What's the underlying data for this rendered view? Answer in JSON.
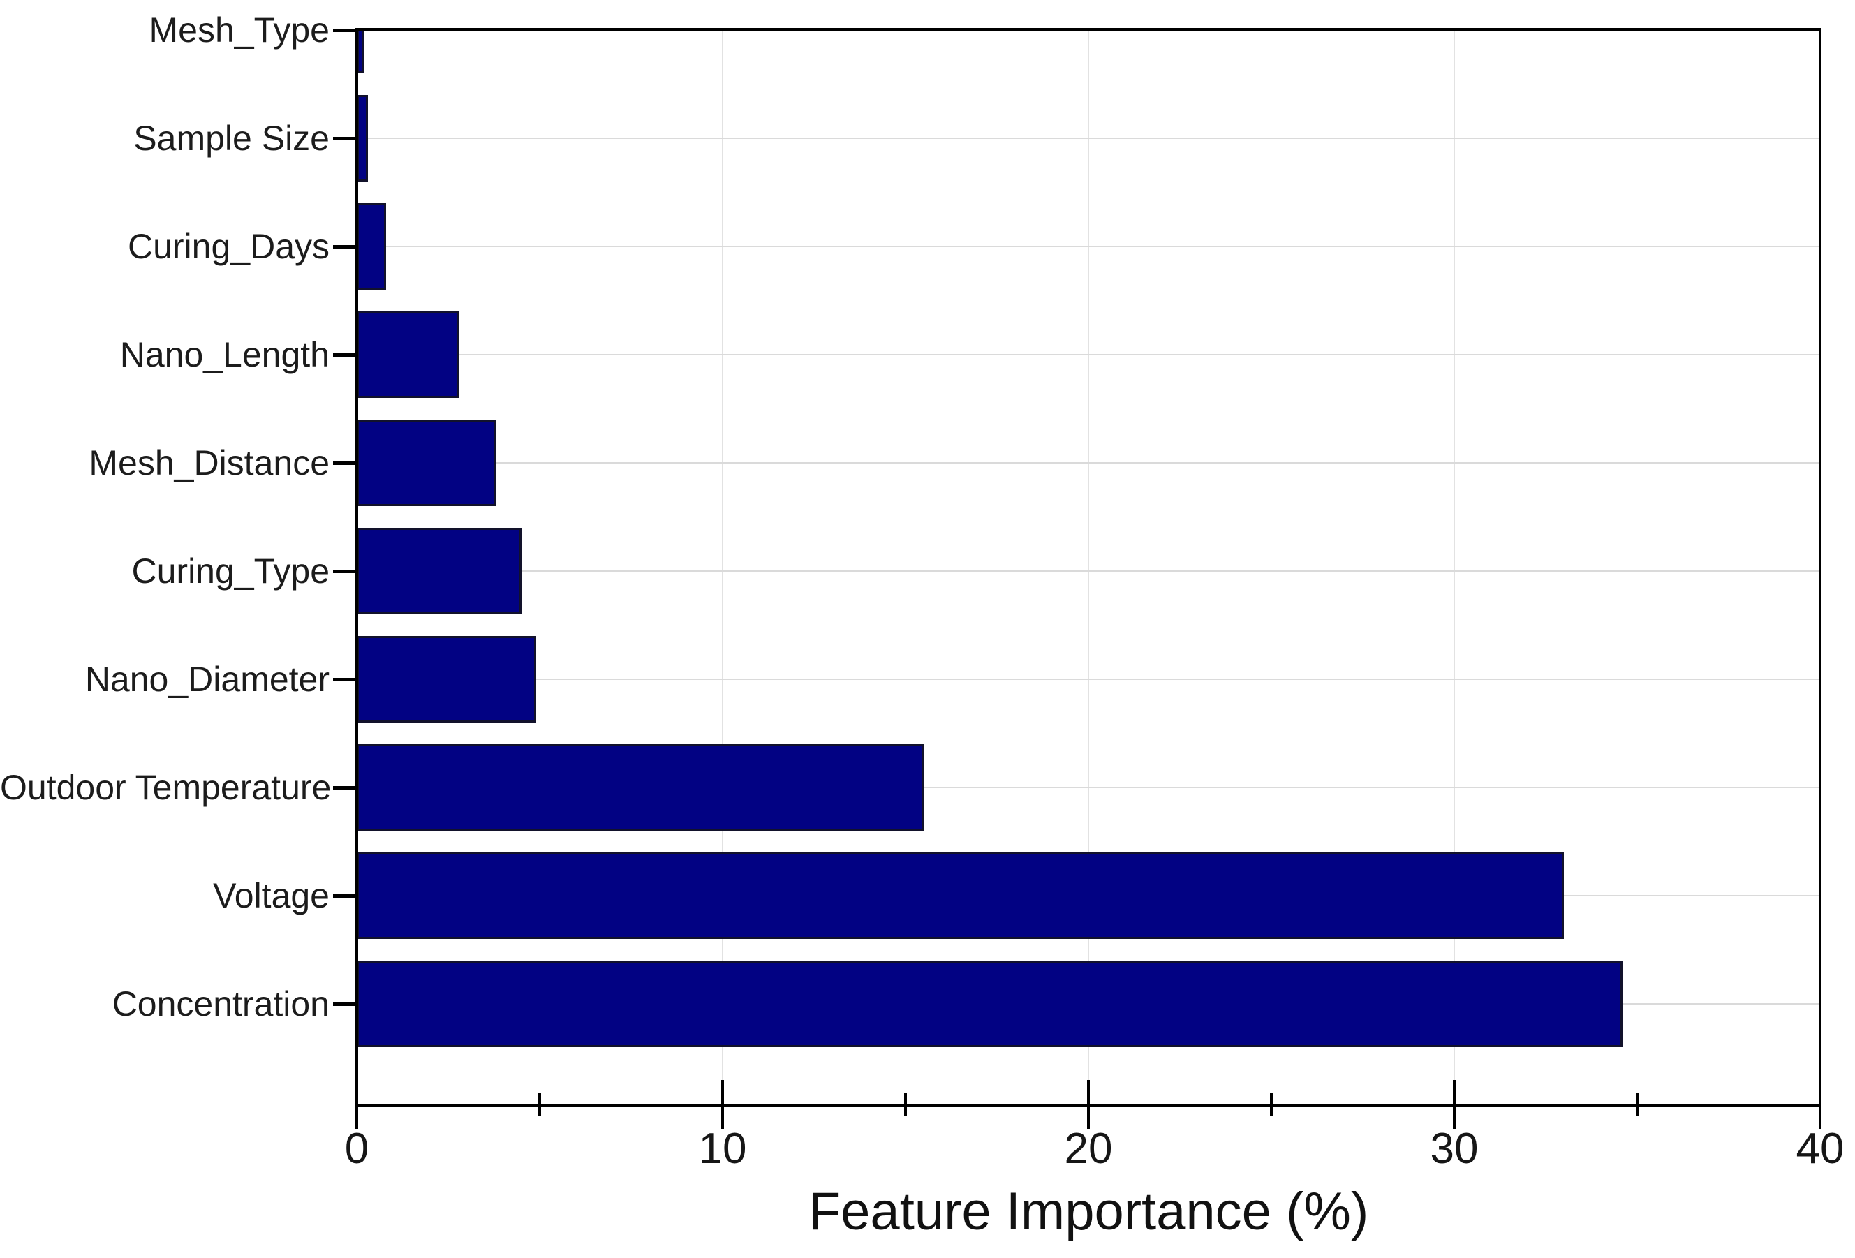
{
  "chart_data": {
    "type": "bar",
    "orientation": "horizontal",
    "title": "",
    "xlabel": "Feature Importance (%)",
    "ylabel": "",
    "categories_top_to_bottom": [
      "Mesh_Type",
      "Sample Size",
      "Curing_Days",
      "Nano_Length",
      "Mesh_Distance",
      "Curing_Type",
      "Nano_Diameter",
      "Outdoor Temperature",
      "Voltage",
      "Concentration"
    ],
    "values": [
      0.2,
      0.3,
      0.8,
      2.8,
      3.8,
      4.5,
      4.9,
      15.5,
      33.0,
      34.6
    ],
    "xlim": [
      0,
      40
    ],
    "x_major_ticks": [
      0,
      10,
      20,
      30,
      40
    ],
    "x_minor_ticks": [
      5,
      15,
      25,
      35
    ],
    "grid": {
      "horizontal_per_category": true,
      "vertical_at_major_ticks": true,
      "color": "#dadada"
    },
    "legend": "none",
    "colors": {
      "bar_fill": "#020283",
      "bar_border": "#12122b",
      "axis": "#000000",
      "background": "#ffffff",
      "text": "#161616"
    }
  }
}
